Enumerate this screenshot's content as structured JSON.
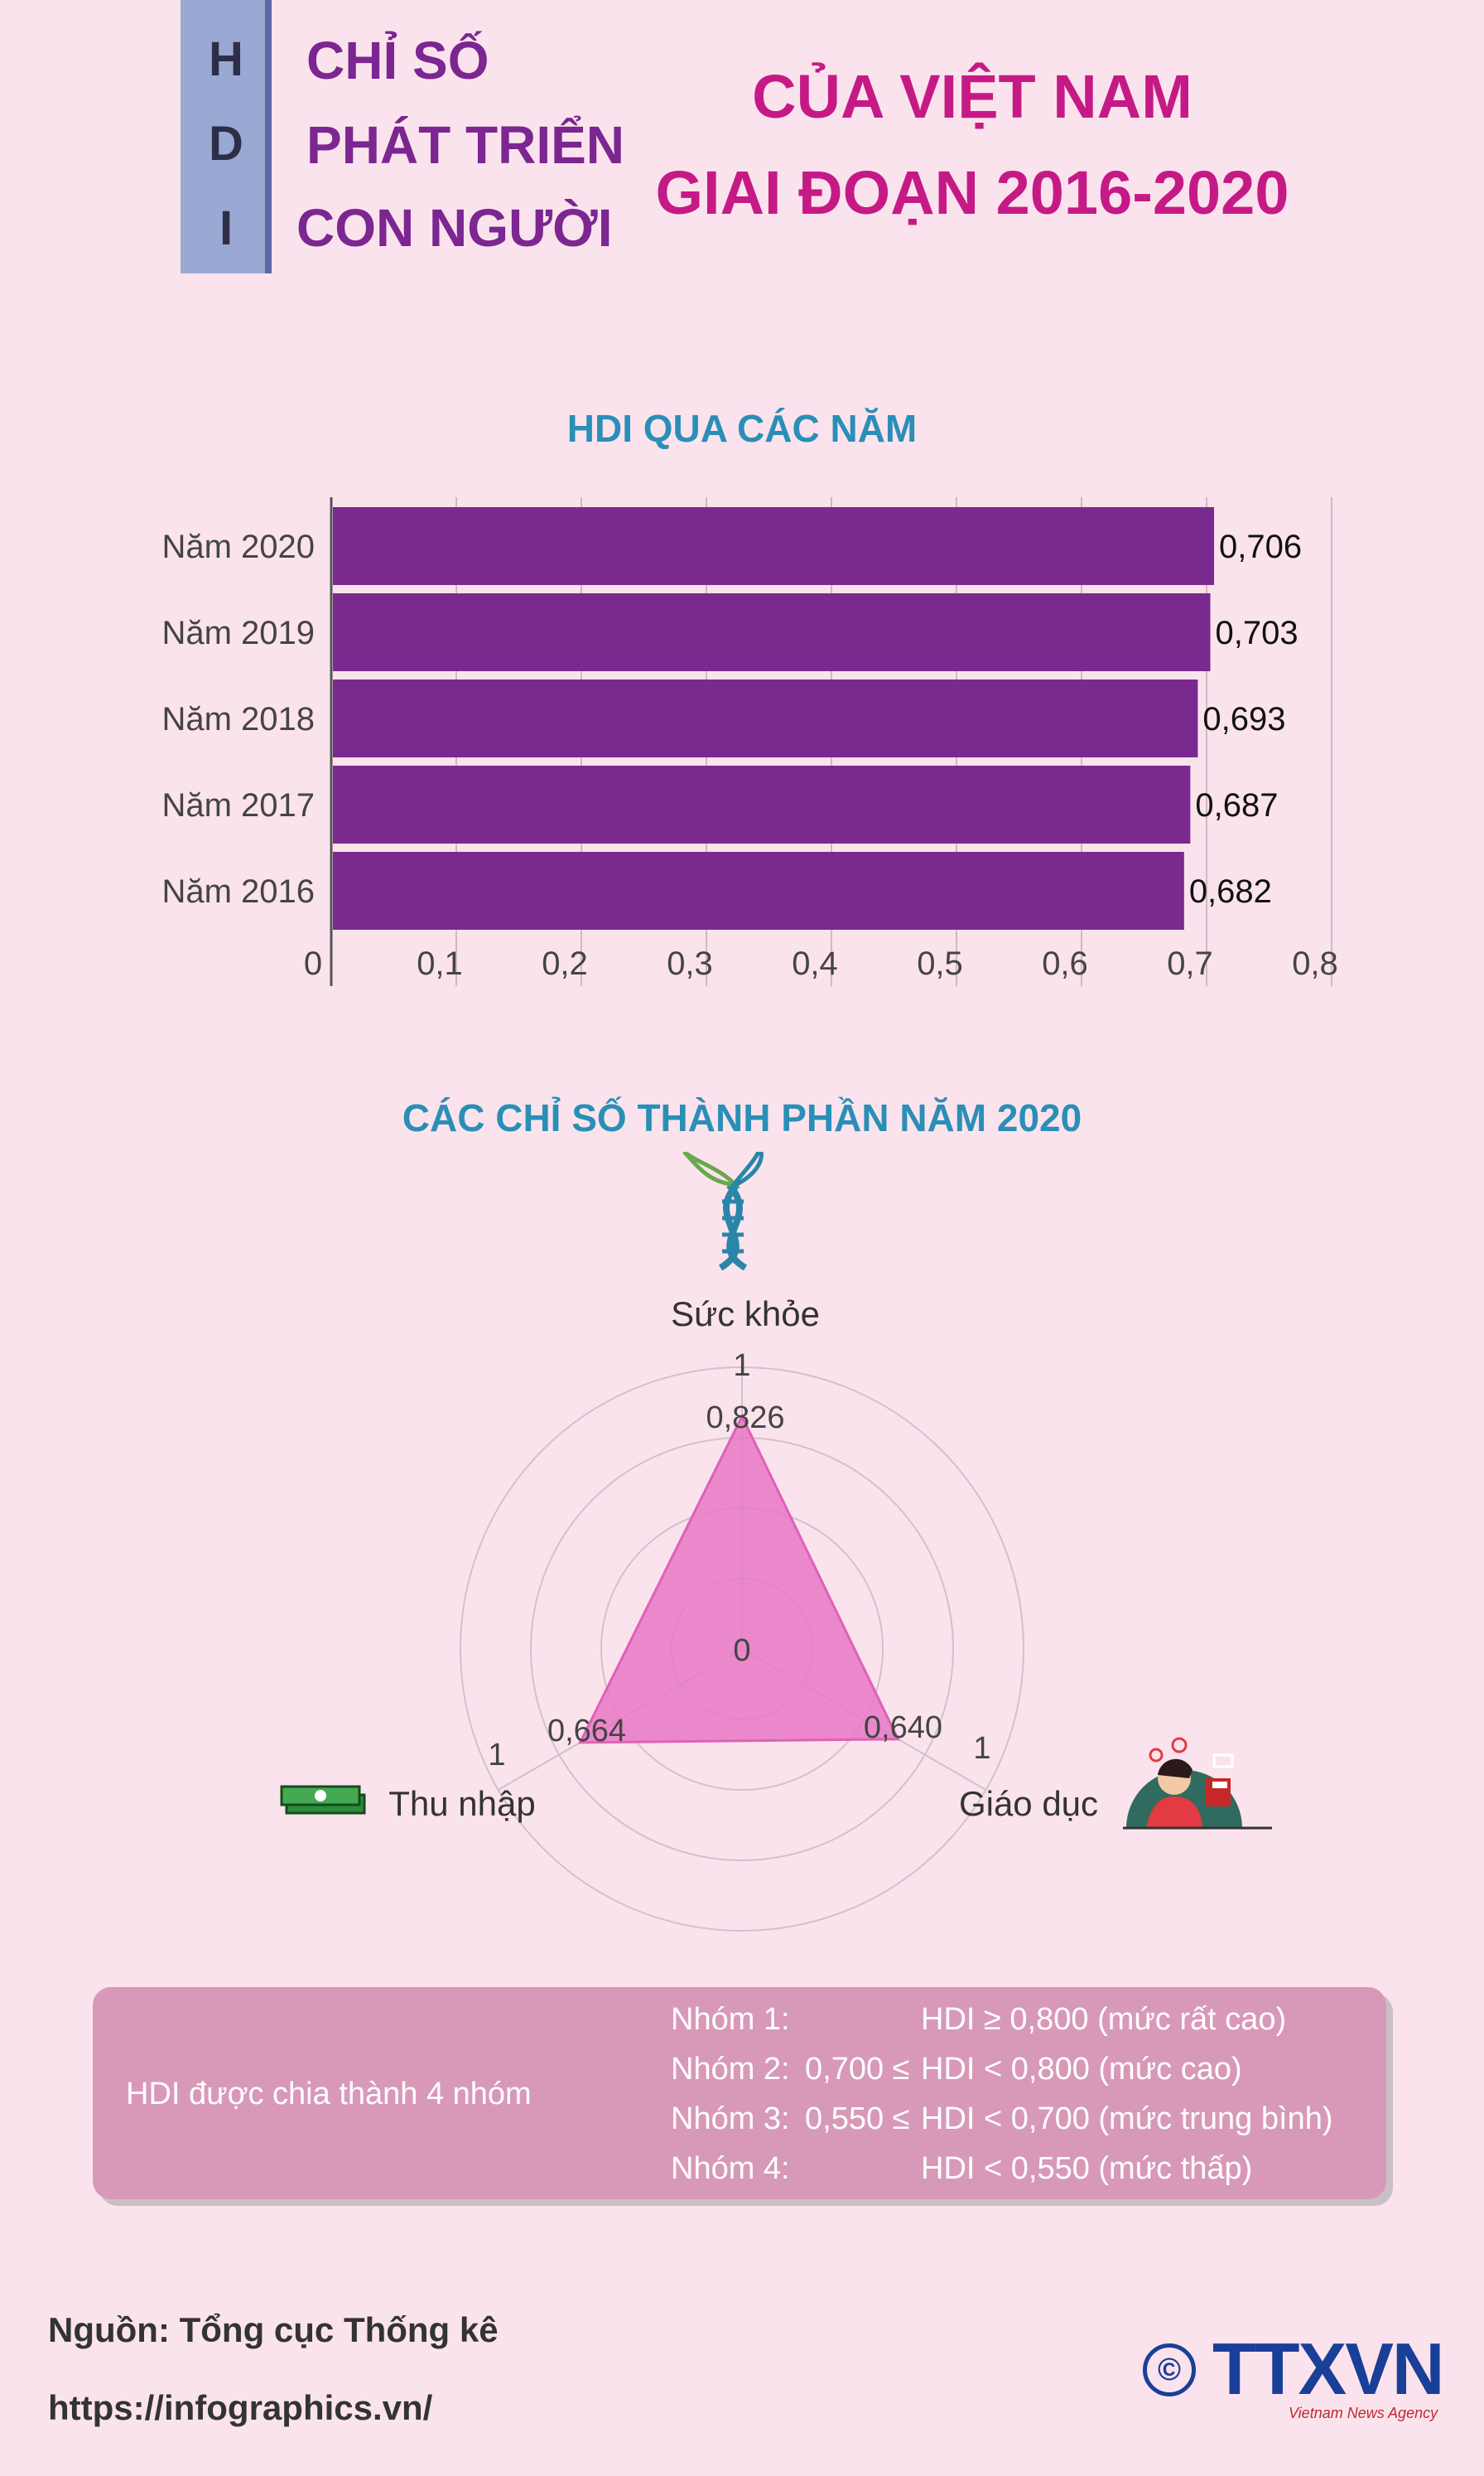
{
  "header": {
    "hdi_letters": [
      "H",
      "D",
      "I"
    ],
    "left_lines": [
      "CHỈ SỐ",
      "PHÁT TRIỂN",
      "CON NGƯỜI"
    ],
    "right_lines": [
      "CỦA VIỆT NAM",
      "GIAI ĐOẠN 2016-2020"
    ]
  },
  "colors": {
    "background": "#fbe3ed",
    "bar": "#7a2a8e",
    "radar_fill": "#e878c6",
    "title_pink": "#c51a86",
    "title_purple": "#7b2691",
    "section_blue": "#2a8fb7",
    "info_box": "#d899b8"
  },
  "chart_data": [
    {
      "type": "bar",
      "orientation": "horizontal",
      "title": "HDI QUA CÁC NĂM",
      "categories": [
        "Năm 2020",
        "Năm 2019",
        "Năm 2018",
        "Năm 2017",
        "Năm 2016"
      ],
      "values": [
        0.706,
        0.703,
        0.693,
        0.687,
        0.682
      ],
      "value_labels": [
        "0,706",
        "0,703",
        "0,693",
        "0,687",
        "0,682"
      ],
      "xlim": [
        0,
        0.8
      ],
      "x_ticks": [
        0,
        0.1,
        0.2,
        0.3,
        0.4,
        0.5,
        0.6,
        0.7,
        0.8
      ],
      "x_tick_labels": [
        "0",
        "0,1",
        "0,2",
        "0,3",
        "0,4",
        "0,5",
        "0,6",
        "0,7",
        "0,8"
      ],
      "grid": true
    },
    {
      "type": "radar",
      "title": "CÁC CHỈ SỐ THÀNH PHẦN NĂM 2020",
      "axes": [
        "Sức khỏe",
        "Giáo dục",
        "Thu nhập"
      ],
      "values": [
        0.826,
        0.64,
        0.664
      ],
      "value_labels": [
        "0,826",
        "0,640",
        "0,664"
      ],
      "range": [
        0,
        1
      ],
      "range_labels": [
        "0",
        "1"
      ],
      "grid_rings": 4,
      "icons": [
        "dna-plant-icon",
        "student-reading-icon",
        "money-stack-icon"
      ]
    }
  ],
  "info_box": {
    "label": "HDI được chia thành 4 nhóm",
    "groups": [
      {
        "name": "Nhóm 1:",
        "mid": "",
        "rule": "HDI ≥ 0,800 (mức rất cao)"
      },
      {
        "name": "Nhóm 2:",
        "mid": "0,700 ≤",
        "rule": "HDI < 0,800 (mức cao)"
      },
      {
        "name": "Nhóm 3:",
        "mid": "0,550 ≤",
        "rule": "HDI < 0,700 (mức trung bình)"
      },
      {
        "name": "Nhóm 4:",
        "mid": "",
        "rule": "HDI < 0,550 (mức thấp)"
      }
    ]
  },
  "footer": {
    "source": "Nguồn: Tổng cục Thống kê",
    "url": "https://infographics.vn/",
    "logo_symbol": "©",
    "logo_text": "TTXVN",
    "logo_subtext": "Vietnam News Agency"
  }
}
